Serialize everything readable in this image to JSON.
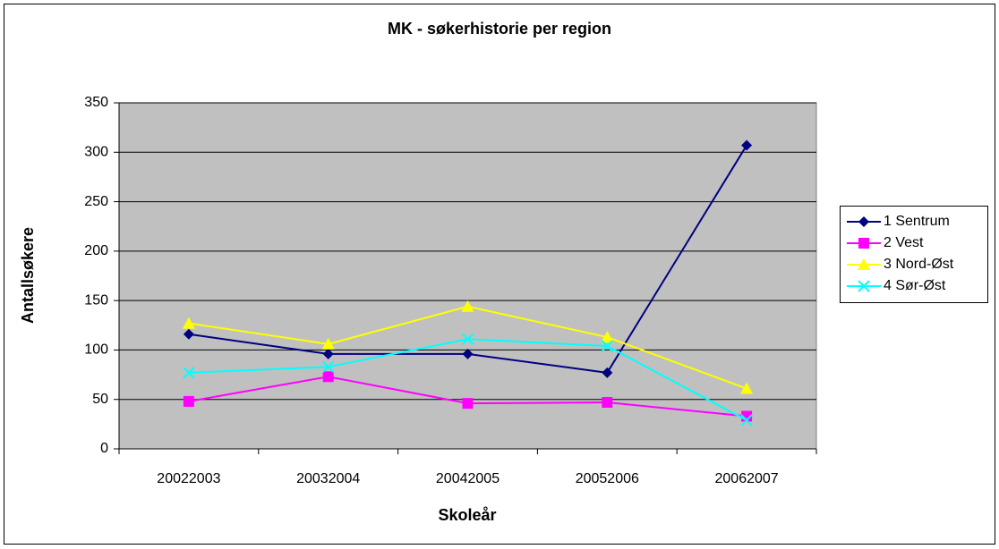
{
  "chart_data": {
    "type": "line",
    "title": "MK - søkerhistorie per region",
    "x_label": "Skoleår",
    "y_label": "Antallsøkere",
    "categories": [
      "20022003",
      "20032004",
      "20042005",
      "20052006",
      "20062007"
    ],
    "series": [
      {
        "name": "1 Sentrum",
        "color": "#000080",
        "marker": "diamond",
        "values": [
          116,
          96,
          96,
          77,
          307
        ]
      },
      {
        "name": "2 Vest",
        "color": "#ff00ff",
        "marker": "square",
        "values": [
          48,
          73,
          46,
          47,
          33
        ]
      },
      {
        "name": "3 Nord-Øst",
        "color": "#ffff00",
        "marker": "triangle",
        "values": [
          127,
          106,
          144,
          113,
          61
        ]
      },
      {
        "name": "4 Sør-Øst",
        "color": "#00ffff",
        "marker": "x",
        "values": [
          77,
          83,
          111,
          104,
          29
        ]
      }
    ],
    "ylim": [
      0,
      350
    ],
    "yticks": [
      0,
      50,
      100,
      150,
      200,
      250,
      300,
      350
    ],
    "grid": true,
    "plot_background": "#c0c0c0",
    "legend": "right"
  }
}
